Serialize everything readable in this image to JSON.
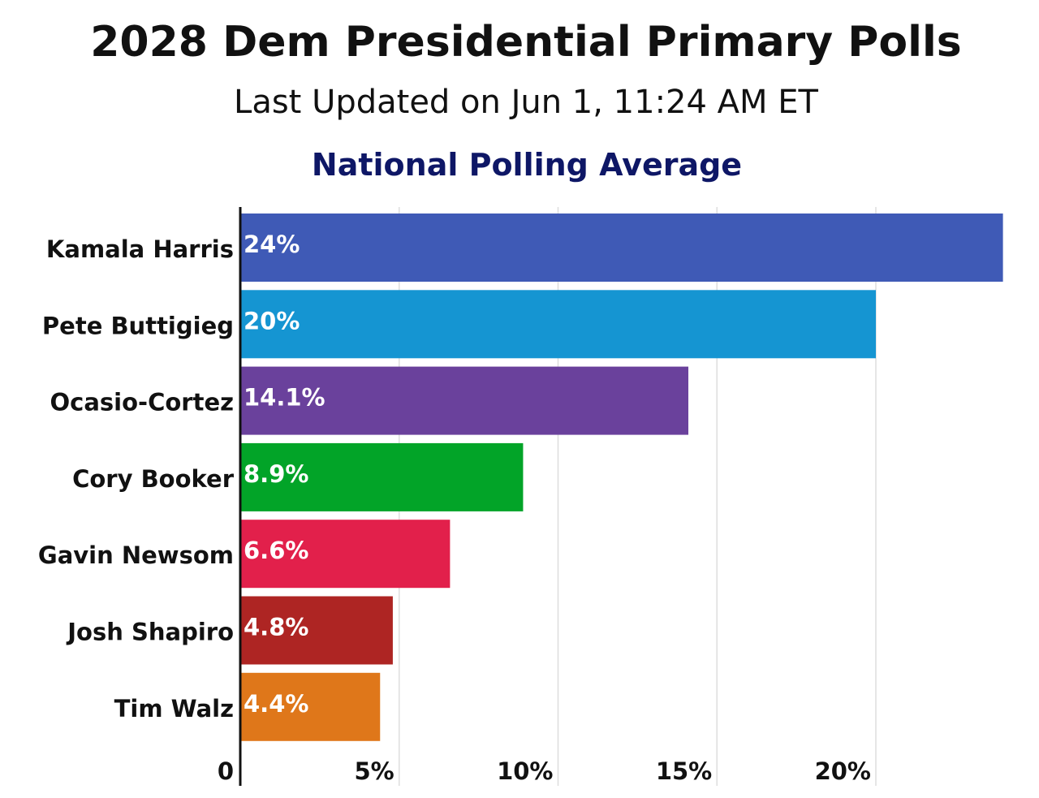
{
  "header": {
    "title": "2028 Dem Presidential Primary Polls",
    "subtitle": "Last Updated on Jun 1, 11:24 AM ET"
  },
  "chart_data": {
    "type": "bar",
    "orientation": "horizontal",
    "title": "National Polling Average",
    "categories": [
      "Kamala Harris",
      "Pete Buttigieg",
      "Ocasio-Cortez",
      "Cory Booker",
      "Gavin Newsom",
      "Josh Shapiro",
      "Tim Walz"
    ],
    "values": [
      24,
      20,
      14.1,
      8.9,
      6.6,
      4.8,
      4.4
    ],
    "value_labels": [
      "24%",
      "20%",
      "14.1%",
      "8.9%",
      "6.6%",
      "4.8%",
      "4.4%"
    ],
    "colors": [
      "#3f5ab6",
      "#1595d2",
      "#6a419c",
      "#02a428",
      "#e2204b",
      "#ae2523",
      "#df771a"
    ],
    "xlim": [
      0,
      24
    ],
    "xticks": [
      0,
      5,
      10,
      15,
      20
    ],
    "xtick_labels": [
      "0",
      "5%",
      "10%",
      "15%",
      "20%"
    ],
    "xlabel": "",
    "ylabel": "",
    "grid": true,
    "title_color": "#0e1766"
  }
}
